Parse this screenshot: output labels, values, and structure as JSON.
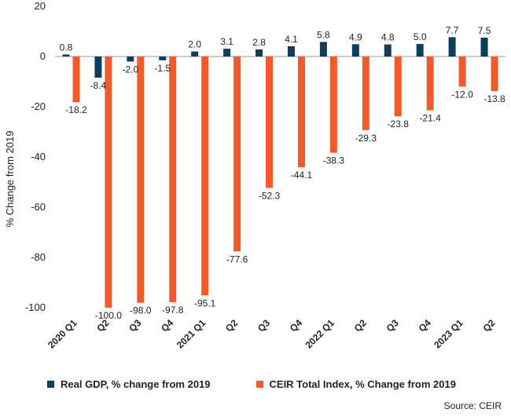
{
  "chart_data": {
    "type": "bar",
    "title": "",
    "xlabel": "",
    "ylabel": "% Change from 2019",
    "ylim": [
      -100,
      20
    ],
    "yticks": [
      20,
      0,
      -20,
      -40,
      -60,
      -80,
      -100
    ],
    "grid": false,
    "legend_position": "bottom",
    "categories": [
      "2020 Q1",
      "Q2",
      "Q3",
      "Q4",
      "2021 Q1",
      "Q2",
      "Q3",
      "Q4",
      "2022 Q1",
      "Q2",
      "Q3",
      "Q4",
      "2023 Q1",
      "Q2"
    ],
    "series": [
      {
        "name": "Real GDP, % change from 2019",
        "color": "#0e3d5e",
        "values": [
          0.8,
          -8.4,
          -2.0,
          -1.5,
          2.0,
          3.1,
          2.8,
          4.1,
          5.8,
          4.9,
          4.8,
          5.0,
          7.7,
          7.5
        ]
      },
      {
        "name": "CEIR Total Index, % Change from 2019",
        "color": "#f15a2b",
        "values": [
          -18.2,
          -100.0,
          -98.0,
          -97.8,
          -95.1,
          -77.6,
          -52.3,
          -44.1,
          -38.3,
          -29.3,
          -23.8,
          -21.4,
          -12.0,
          -13.8
        ]
      }
    ]
  },
  "source": "Source: CEIR"
}
